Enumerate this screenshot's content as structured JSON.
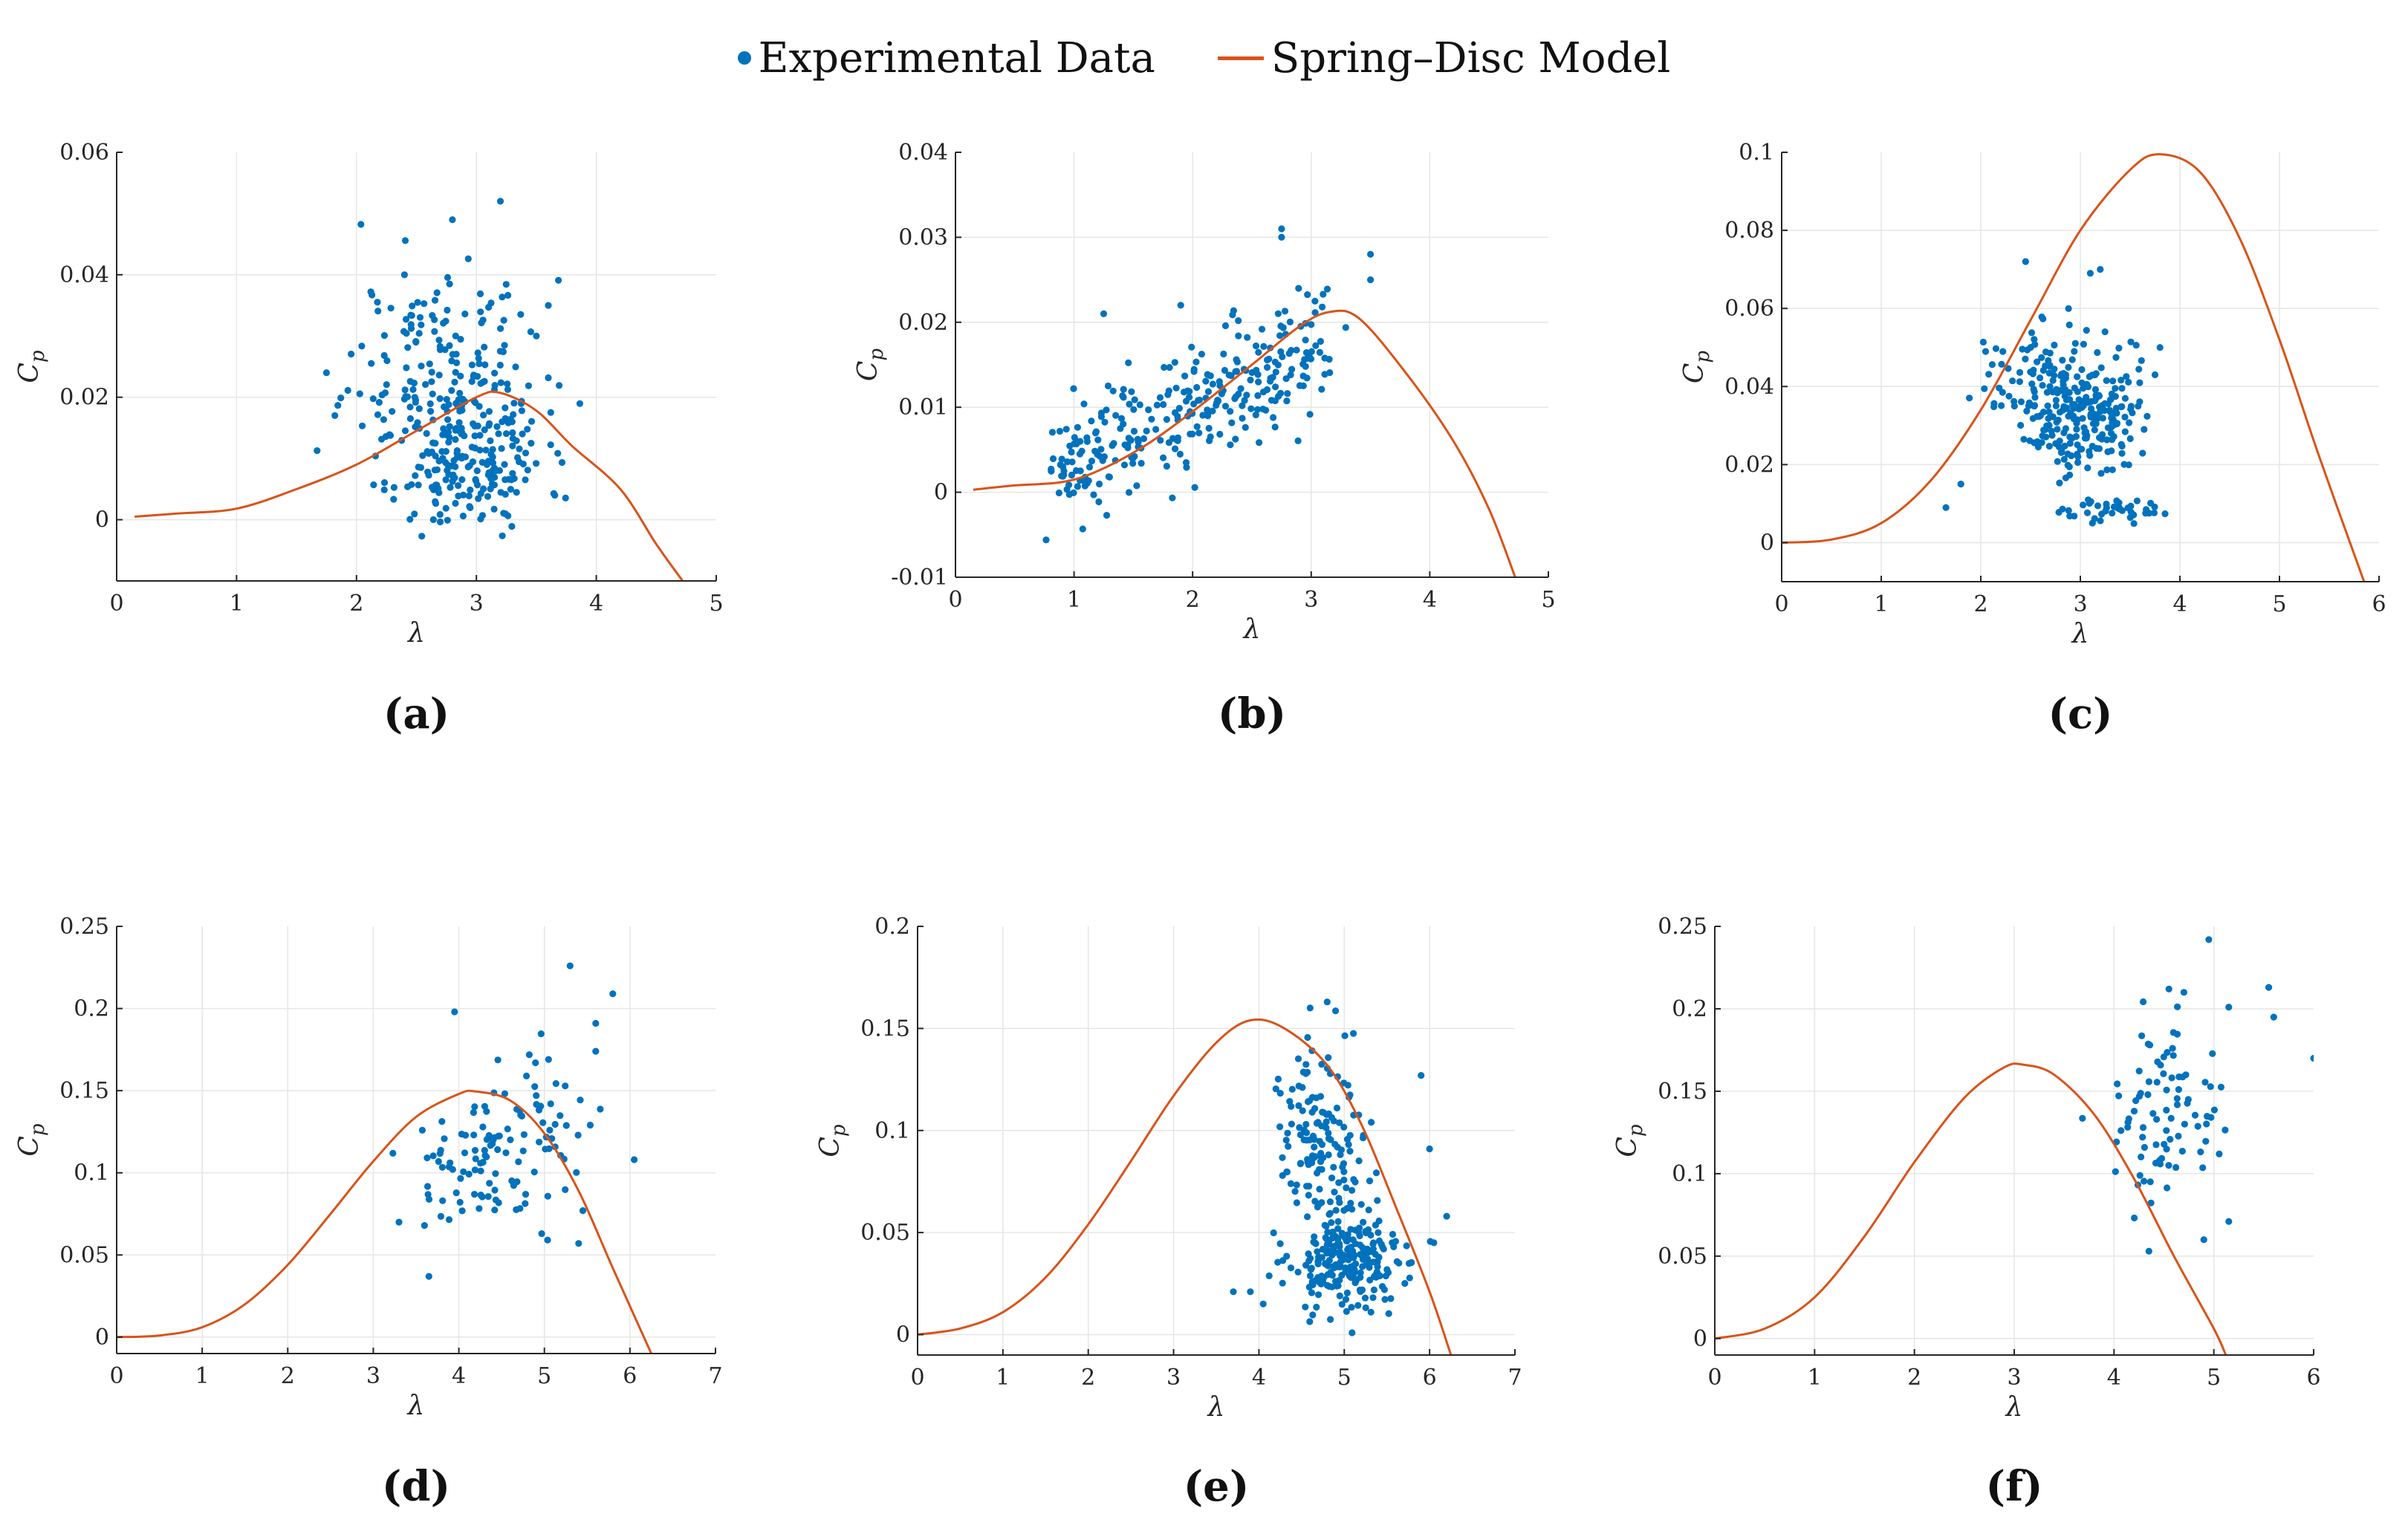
{
  "legend": {
    "experimental": "Experimental Data",
    "model": "Spring–Disc Model"
  },
  "colors": {
    "data": "#0072BD",
    "model": "#D95319",
    "grid": "#e6e6e6",
    "axis": "#262626"
  },
  "chart_data": [
    {
      "type": "scatter",
      "label": "(a)",
      "xlabel": "λ",
      "ylabel": "C_p",
      "xlim": [
        0,
        5
      ],
      "ylim": [
        -0.01,
        0.06
      ],
      "xticks": [
        0,
        1,
        2,
        3,
        4,
        5
      ],
      "xticklabels": [
        "0",
        "1",
        "2",
        "3",
        "4",
        "5"
      ],
      "yticks": [
        0,
        0.02,
        0.04,
        0.06
      ],
      "yticklabels": [
        "0",
        "0.02",
        "0.04",
        "0.06"
      ],
      "scatter": {
        "n": 360,
        "seed": 11,
        "clusters": [
          {
            "w": 0.55,
            "cx": 2.95,
            "sx": 0.32,
            "cy": 0.01,
            "sy": 0.006
          },
          {
            "w": 0.45,
            "cx": 2.75,
            "sx": 0.4,
            "cy": 0.025,
            "sy": 0.008
          }
        ],
        "extra": [
          [
            3.2,
            0.052
          ],
          [
            2.8,
            0.049
          ],
          [
            1.75,
            0.024
          ],
          [
            1.82,
            0.017
          ],
          [
            2.4,
            0.04
          ],
          [
            3.6,
            0.035
          ],
          [
            3.5,
            0.03
          ]
        ]
      },
      "model": {
        "points": [
          [
            0.15,
            0.0005
          ],
          [
            0.5,
            0.001
          ],
          [
            1.0,
            0.0018
          ],
          [
            1.5,
            0.005
          ],
          [
            2.0,
            0.009
          ],
          [
            2.5,
            0.0145
          ],
          [
            3.0,
            0.02
          ],
          [
            3.2,
            0.0207
          ],
          [
            3.5,
            0.0178
          ],
          [
            3.8,
            0.012
          ],
          [
            4.2,
            0.005
          ],
          [
            4.5,
            -0.004
          ],
          [
            4.72,
            -0.01
          ]
        ]
      }
    },
    {
      "type": "scatter",
      "label": "(b)",
      "xlabel": "λ",
      "ylabel": "C_p",
      "xlim": [
        0,
        5
      ],
      "ylim": [
        -0.01,
        0.04
      ],
      "xticks": [
        0,
        1,
        2,
        3,
        4,
        5
      ],
      "xticklabels": [
        "0",
        "1",
        "2",
        "3",
        "4",
        "5"
      ],
      "yticks": [
        -0.01,
        0,
        0.01,
        0.02,
        0.03,
        0.04
      ],
      "yticklabels": [
        "-0.01",
        "0",
        "0.01",
        "0.02",
        "0.03",
        "0.04"
      ],
      "scatter": {
        "n": 300,
        "seed": 23,
        "linear": {
          "x0": 0.85,
          "x1": 3.2,
          "y0": 0.003,
          "y1": 0.017,
          "sy": 0.0035
        },
        "extra": [
          [
            2.75,
            0.031
          ],
          [
            2.75,
            0.03
          ],
          [
            3.5,
            0.028
          ],
          [
            3.5,
            0.025
          ],
          [
            1.25,
            0.021
          ],
          [
            1.9,
            0.022
          ]
        ]
      },
      "model": {
        "points": [
          [
            0.15,
            0.0003
          ],
          [
            0.5,
            0.0008
          ],
          [
            0.9,
            0.0012
          ],
          [
            1.2,
            0.0025
          ],
          [
            1.6,
            0.0055
          ],
          [
            2.0,
            0.0095
          ],
          [
            2.5,
            0.015
          ],
          [
            2.9,
            0.0195
          ],
          [
            3.15,
            0.0212
          ],
          [
            3.4,
            0.0205
          ],
          [
            3.8,
            0.014
          ],
          [
            4.2,
            0.006
          ],
          [
            4.5,
            -0.002
          ],
          [
            4.72,
            -0.01
          ]
        ]
      }
    },
    {
      "type": "scatter",
      "label": "(c)",
      "xlabel": "λ",
      "ylabel": "C_p",
      "xlim": [
        0,
        6
      ],
      "ylim": [
        -0.01,
        0.1
      ],
      "xticks": [
        0,
        1,
        2,
        3,
        4,
        5,
        6
      ],
      "xticklabels": [
        "0",
        "1",
        "2",
        "3",
        "4",
        "5",
        "6"
      ],
      "yticks": [
        0,
        0.02,
        0.04,
        0.06,
        0.08,
        0.1
      ],
      "yticklabels": [
        "0",
        "0.02",
        "0.04",
        "0.06",
        "0.08",
        "0.1"
      ],
      "scatter": {
        "n": 340,
        "seed": 37,
        "clusters": [
          {
            "w": 0.6,
            "cx": 3.0,
            "sx": 0.28,
            "cy": 0.032,
            "sy": 0.007
          },
          {
            "w": 0.28,
            "cx": 2.75,
            "sx": 0.38,
            "cy": 0.045,
            "sy": 0.007
          },
          {
            "w": 0.12,
            "cx": 3.3,
            "sx": 0.25,
            "cy": 0.008,
            "sy": 0.0015
          }
        ],
        "extra": [
          [
            2.45,
            0.072
          ],
          [
            3.2,
            0.07
          ],
          [
            3.1,
            0.069
          ],
          [
            1.65,
            0.009
          ],
          [
            1.8,
            0.015
          ],
          [
            3.8,
            0.05
          ],
          [
            3.75,
            0.043
          ]
        ]
      },
      "model": {
        "points": [
          [
            0,
            0
          ],
          [
            0.5,
            0.0008
          ],
          [
            1.0,
            0.005
          ],
          [
            1.5,
            0.016
          ],
          [
            2.0,
            0.034
          ],
          [
            2.5,
            0.057
          ],
          [
            3.0,
            0.08
          ],
          [
            3.5,
            0.0955
          ],
          [
            3.8,
            0.0995
          ],
          [
            4.2,
            0.095
          ],
          [
            4.6,
            0.078
          ],
          [
            5.0,
            0.052
          ],
          [
            5.4,
            0.022
          ],
          [
            5.85,
            -0.01
          ]
        ]
      }
    },
    {
      "type": "scatter",
      "label": "(d)",
      "xlabel": "λ",
      "ylabel": "C_p",
      "xlim": [
        0,
        7
      ],
      "ylim": [
        -0.01,
        0.25
      ],
      "xticks": [
        0,
        1,
        2,
        3,
        4,
        5,
        6,
        7
      ],
      "xticklabels": [
        "0",
        "1",
        "2",
        "3",
        "4",
        "5",
        "6",
        "7"
      ],
      "yticks": [
        0,
        0.05,
        0.1,
        0.15,
        0.2,
        0.25
      ],
      "yticklabels": [
        "0",
        "0.05",
        "0.1",
        "0.15",
        "0.2",
        "0.25"
      ],
      "scatter": {
        "n": 120,
        "seed": 41,
        "clusters": [
          {
            "w": 0.75,
            "cx": 4.4,
            "sx": 0.5,
            "cy": 0.105,
            "sy": 0.018
          },
          {
            "w": 0.25,
            "cx": 5.0,
            "sx": 0.25,
            "cy": 0.14,
            "sy": 0.02
          }
        ],
        "extra": [
          [
            5.3,
            0.226
          ],
          [
            5.8,
            0.209
          ],
          [
            5.6,
            0.191
          ],
          [
            5.6,
            0.174
          ],
          [
            3.95,
            0.198
          ],
          [
            3.65,
            0.037
          ],
          [
            6.05,
            0.108
          ],
          [
            5.4,
            0.057
          ],
          [
            5.45,
            0.077
          ],
          [
            3.3,
            0.07
          ]
        ]
      },
      "model": {
        "points": [
          [
            0,
            0
          ],
          [
            0.5,
            0.001
          ],
          [
            1.0,
            0.006
          ],
          [
            1.5,
            0.02
          ],
          [
            2.0,
            0.044
          ],
          [
            2.5,
            0.075
          ],
          [
            3.0,
            0.107
          ],
          [
            3.5,
            0.134
          ],
          [
            4.0,
            0.148
          ],
          [
            4.2,
            0.1495
          ],
          [
            4.6,
            0.144
          ],
          [
            5.0,
            0.124
          ],
          [
            5.4,
            0.089
          ],
          [
            5.8,
            0.042
          ],
          [
            6.25,
            -0.01
          ]
        ]
      }
    },
    {
      "type": "scatter",
      "label": "(e)",
      "xlabel": "λ",
      "ylabel": "C_p",
      "xlim": [
        0,
        7
      ],
      "ylim": [
        -0.01,
        0.2
      ],
      "xticks": [
        0,
        1,
        2,
        3,
        4,
        5,
        6,
        7
      ],
      "xticklabels": [
        "0",
        "1",
        "2",
        "3",
        "4",
        "5",
        "6",
        "7"
      ],
      "yticks": [
        0,
        0.05,
        0.1,
        0.15,
        0.2
      ],
      "yticklabels": [
        "0",
        "0.05",
        "0.1",
        "0.15",
        "0.2"
      ],
      "scatter": {
        "n": 380,
        "seed": 53,
        "clusters": [
          {
            "w": 0.6,
            "cx": 5.05,
            "sx": 0.35,
            "cy": 0.035,
            "sy": 0.012
          },
          {
            "w": 0.4,
            "cx": 4.8,
            "sx": 0.3,
            "cy": 0.09,
            "sy": 0.025
          }
        ],
        "extra": [
          [
            4.8,
            0.163
          ],
          [
            4.6,
            0.16
          ],
          [
            5.9,
            0.127
          ],
          [
            6.0,
            0.091
          ],
          [
            6.2,
            0.058
          ],
          [
            3.7,
            0.021
          ],
          [
            3.9,
            0.021
          ],
          [
            4.05,
            0.015
          ],
          [
            6.05,
            0.045
          ]
        ]
      },
      "model": {
        "points": [
          [
            0,
            0
          ],
          [
            0.5,
            0.003
          ],
          [
            1.0,
            0.011
          ],
          [
            1.5,
            0.028
          ],
          [
            2.0,
            0.054
          ],
          [
            2.5,
            0.085
          ],
          [
            3.0,
            0.117
          ],
          [
            3.5,
            0.143
          ],
          [
            3.9,
            0.154
          ],
          [
            4.3,
            0.15
          ],
          [
            4.8,
            0.132
          ],
          [
            5.2,
            0.103
          ],
          [
            5.6,
            0.063
          ],
          [
            6.0,
            0.021
          ],
          [
            6.25,
            -0.01
          ]
        ]
      }
    },
    {
      "type": "scatter",
      "label": "(f)",
      "xlabel": "λ",
      "ylabel": "C_p",
      "xlim": [
        0,
        6
      ],
      "ylim": [
        -0.01,
        0.25
      ],
      "xticks": [
        0,
        1,
        2,
        3,
        4,
        5,
        6
      ],
      "xticklabels": [
        "0",
        "1",
        "2",
        "3",
        "4",
        "5",
        "6"
      ],
      "yticks": [
        0,
        0.05,
        0.1,
        0.15,
        0.2,
        0.25
      ],
      "yticklabels": [
        "0",
        "0.05",
        "0.1",
        "0.15",
        "0.2",
        "0.25"
      ],
      "scatter": {
        "n": 85,
        "seed": 67,
        "clusters": [
          {
            "w": 1.0,
            "cx": 4.5,
            "sx": 0.28,
            "cy": 0.13,
            "sy": 0.028
          }
        ],
        "extra": [
          [
            4.95,
            0.242
          ],
          [
            5.55,
            0.213
          ],
          [
            5.6,
            0.195
          ],
          [
            5.15,
            0.201
          ],
          [
            6.0,
            0.17
          ],
          [
            4.35,
            0.053
          ],
          [
            5.15,
            0.071
          ],
          [
            4.9,
            0.06
          ],
          [
            4.55,
            0.212
          ],
          [
            4.7,
            0.21
          ]
        ]
      },
      "model": {
        "points": [
          [
            0,
            0
          ],
          [
            0.5,
            0.006
          ],
          [
            1.0,
            0.025
          ],
          [
            1.5,
            0.062
          ],
          [
            2.0,
            0.107
          ],
          [
            2.5,
            0.146
          ],
          [
            2.9,
            0.1645
          ],
          [
            3.1,
            0.166
          ],
          [
            3.4,
            0.16
          ],
          [
            3.8,
            0.136
          ],
          [
            4.2,
            0.097
          ],
          [
            4.6,
            0.05
          ],
          [
            5.0,
            0.006
          ],
          [
            5.12,
            -0.01
          ]
        ]
      }
    }
  ]
}
